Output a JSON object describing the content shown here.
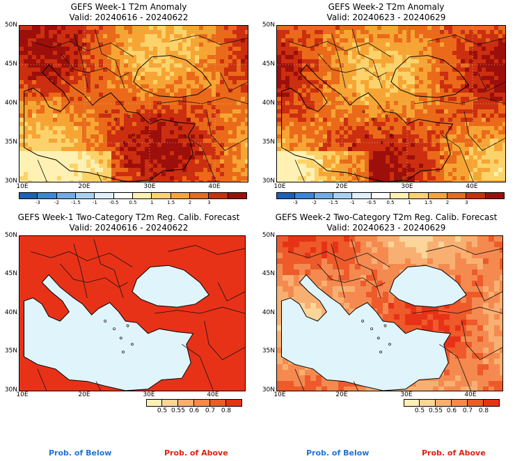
{
  "panels": [
    {
      "title": "GEFS Week-1 T2m Anomaly",
      "valid": "Valid: 20240616 - 20240622",
      "kind": "anomaly"
    },
    {
      "title": "GEFS Week-2 T2m Anomaly",
      "valid": "Valid: 20240623 - 20240629",
      "kind": "anomaly"
    },
    {
      "title": "GEFS Week-1 Two-Category T2m Reg. Calib. Forecast",
      "valid": "Valid: 20240616 - 20240622",
      "kind": "prob"
    },
    {
      "title": "GEFS Week-2 Two-Category T2m Reg. Calib. Forecast",
      "valid": "Valid: 20240623 - 20240629",
      "kind": "prob"
    }
  ],
  "lat_labels": [
    "50N",
    "45N",
    "40N",
    "35N",
    "30N"
  ],
  "lon_labels": [
    "10E",
    "20E",
    "30E",
    "40E"
  ],
  "anomaly_scale": {
    "ticks": [
      "-3",
      "-2",
      "-1.5",
      "-1",
      "-0.5",
      "0.5",
      "1",
      "1.5",
      "2",
      "3"
    ],
    "colors": [
      "#1f5fb4",
      "#3c86d6",
      "#72abe6",
      "#a9d0f0",
      "#dff0fb",
      "#ffffff",
      "#fff1b3",
      "#fcd36a",
      "#f6a534",
      "#ea6a1a",
      "#cc2e10",
      "#9c0f0a"
    ]
  },
  "prob_scale": {
    "ticks": [
      "0.5",
      "0.55",
      "0.6",
      "0.7",
      "0.8"
    ],
    "colors": [
      "#fff0b8",
      "#fbd59a",
      "#f8b072",
      "#f58a50",
      "#ee5a2a",
      "#e83218"
    ]
  },
  "legend": {
    "below": "Prob. of Below",
    "above": "Prob. of Above"
  },
  "colors": {
    "sea": "#dff4fb",
    "below": "#1e73d6",
    "above": "#e02010"
  }
}
